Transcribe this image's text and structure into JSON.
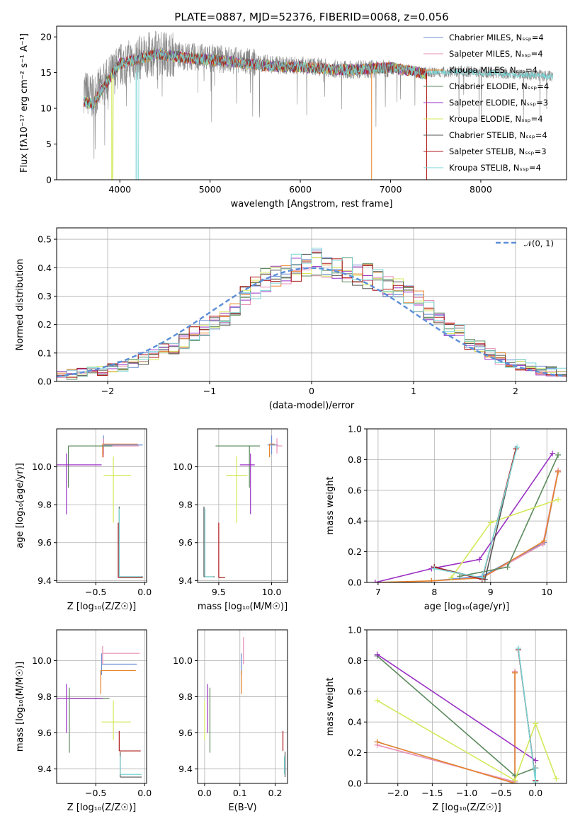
{
  "colors": [
    "#6c8ed4",
    "#e88fb5",
    "#e8852c",
    "#5c8a5e",
    "#9b30c4",
    "#d4e85a",
    "#555555",
    "#b01818",
    "#7ad6d6"
  ],
  "chart_data": [
    {
      "id": "spectrum",
      "type": "line",
      "title": "PLATE=0887, MJD=52376, FIBERID=0068, z=0.056",
      "xlabel": "wavelength [Angstrom, rest frame]",
      "ylabel": "Flux [fλ10⁻¹⁷ erg cm⁻² s⁻¹ A⁻¹]",
      "xlim": [
        3300,
        8950
      ],
      "ylim": [
        0,
        21.5
      ],
      "xticks": [
        4000,
        5000,
        6000,
        7000,
        8000
      ],
      "yticks": [
        0,
        5,
        10,
        15,
        20
      ],
      "grid": false,
      "legend_position": "top-right",
      "legend": [
        "Chabrier MILES, Nₛₛₚ=4",
        "Salpeter MILES, Nₛₛₚ=4",
        "Kroupa MILES, Nₛₛₚ=4",
        "Chabrier ELODIE, Nₛₛₚ=4",
        "Salpeter ELODIE, Nₛₛₚ=3",
        "Kroupa ELODIE, Nₛₛₚ=4",
        "Chabrier STELIB, Nₛₛₚ=4",
        "Salpeter STELIB, Nₛₛₚ=3",
        "Kroupa STELIB, Nₛₛₚ=4"
      ],
      "data_x": [
        3600,
        3700,
        3800,
        3900,
        4000,
        4200,
        4400,
        4600,
        4800,
        5000,
        5200,
        5400,
        5600,
        5800,
        6000,
        6200,
        6400,
        6600,
        6800,
        7000,
        7200,
        7400,
        7500,
        7800,
        8100,
        8400,
        8800
      ],
      "data_y": [
        12.5,
        11.5,
        13.0,
        14.5,
        16.0,
        17.0,
        17.8,
        17.5,
        17.2,
        17.0,
        16.8,
        16.5,
        16.3,
        16.0,
        16.0,
        15.8,
        15.5,
        15.4,
        15.5,
        15.5,
        15.3,
        15.0,
        15.0,
        15.2,
        15.0,
        14.8,
        14.5
      ],
      "model_x": [
        3600,
        3700,
        3800,
        3900,
        4000,
        4200,
        4400,
        4600,
        4800,
        5000,
        5200,
        5400,
        5600,
        5800,
        6000,
        6200,
        6400,
        6600,
        6800,
        7000,
        7200,
        7400
      ],
      "model_y": [
        11.0,
        10.5,
        12.5,
        14.5,
        16.3,
        16.8,
        17.6,
        17.3,
        17.0,
        16.8,
        16.6,
        16.2,
        16.0,
        15.8,
        15.8,
        15.6,
        15.4,
        15.4,
        15.6,
        15.7,
        15.3,
        14.8
      ],
      "model_x2": [
        7400,
        7700,
        8000,
        8300,
        8600,
        8800
      ],
      "model_y2": [
        15.0,
        15.1,
        15.0,
        14.7,
        14.6,
        14.4
      ]
    },
    {
      "id": "residuals",
      "type": "step",
      "xlabel": "(data-model)/error",
      "ylabel": "Normed distribution",
      "xlim": [
        -2.5,
        2.5
      ],
      "ylim": [
        0,
        0.54
      ],
      "xticks": [
        -2,
        -1,
        0,
        1,
        2
      ],
      "yticks": [
        0.0,
        0.1,
        0.2,
        0.3,
        0.4,
        0.5
      ],
      "grid": true,
      "legend_position": "top-right",
      "normal_label": "𝒩(0, 1)",
      "bin_edges": [
        -2.5,
        -2.4,
        -2.3,
        -2.2,
        -2.1,
        -2.0,
        -1.9,
        -1.8,
        -1.7,
        -1.6,
        -1.5,
        -1.4,
        -1.3,
        -1.2,
        -1.1,
        -1.0,
        -0.9,
        -0.8,
        -0.7,
        -0.6,
        -0.5,
        -0.4,
        -0.3,
        -0.2,
        -0.1,
        0.0,
        0.1,
        0.2,
        0.3,
        0.4,
        0.5,
        0.6,
        0.7,
        0.8,
        0.9,
        1.0,
        1.1,
        1.2,
        1.3,
        1.4,
        1.5,
        1.6,
        1.7,
        1.8,
        1.9,
        2.0,
        2.1,
        2.2,
        2.3,
        2.4,
        2.5
      ],
      "histogram_base": [
        0.02,
        0.025,
        0.03,
        0.035,
        0.04,
        0.05,
        0.055,
        0.065,
        0.08,
        0.1,
        0.11,
        0.12,
        0.14,
        0.17,
        0.19,
        0.21,
        0.23,
        0.27,
        0.3,
        0.33,
        0.36,
        0.38,
        0.39,
        0.4,
        0.41,
        0.42,
        0.41,
        0.4,
        0.39,
        0.38,
        0.37,
        0.36,
        0.34,
        0.32,
        0.3,
        0.28,
        0.25,
        0.22,
        0.19,
        0.17,
        0.14,
        0.12,
        0.1,
        0.08,
        0.07,
        0.06,
        0.05,
        0.04,
        0.035,
        0.03
      ]
    },
    {
      "id": "age-vs-z",
      "type": "scatter",
      "xlabel": "Z [log₁₀(Z/Z☉)]",
      "ylabel": "age  [log₁₀(age/yr)]",
      "xlim": [
        -0.9,
        0.02
      ],
      "ylim": [
        9.39,
        10.2
      ],
      "xticks": [
        -0.5,
        0.0
      ],
      "yticks": [
        9.4,
        9.6,
        9.8,
        10.0
      ],
      "grid": true,
      "points": [
        {
          "x": -0.42,
          "y": 10.115,
          "xerr": [
            0.0,
            0.4
          ],
          "yerr": [
            0.05,
            0.05
          ],
          "c": 0
        },
        {
          "x": -0.42,
          "y": 10.11,
          "xerr": [
            0.02,
            0.36
          ],
          "yerr": [
            0.06,
            0.04
          ],
          "c": 1
        },
        {
          "x": -0.43,
          "y": 10.12,
          "xerr": [
            0.0,
            0.36
          ],
          "yerr": [
            0.07,
            0.0
          ],
          "c": 2
        },
        {
          "x": -0.78,
          "y": 10.11,
          "xerr": [
            0.0,
            0.45
          ],
          "yerr": [
            0.22,
            0.0
          ],
          "c": 3
        },
        {
          "x": -0.8,
          "y": 10.01,
          "xerr": [
            0.1,
            0.36
          ],
          "yerr": [
            0.26,
            0.06
          ],
          "c": 4
        },
        {
          "x": -0.32,
          "y": 9.955,
          "xerr": [
            0.1,
            0.18
          ],
          "yerr": [
            0.25,
            0.1
          ],
          "c": 5
        },
        {
          "x": -0.26,
          "y": 9.42,
          "xerr": [
            0.0,
            0.24
          ],
          "yerr": [
            0.0,
            0.37
          ],
          "c": 6
        },
        {
          "x": -0.27,
          "y": 9.415,
          "xerr": [
            0.0,
            0.25
          ],
          "yerr": [
            0.0,
            0.29
          ],
          "c": 7
        },
        {
          "x": -0.26,
          "y": 9.42,
          "xerr": [
            0.0,
            0.23
          ],
          "yerr": [
            0.0,
            0.36
          ],
          "c": 8
        }
      ]
    },
    {
      "id": "age-vs-mass",
      "type": "scatter",
      "xlabel": "mass [log₁₀(M/M☉)]",
      "ylabel": "",
      "xlim": [
        9.3,
        10.15
      ],
      "ylim": [
        9.39,
        10.2
      ],
      "xticks": [
        9.5,
        10.0
      ],
      "yticks": [
        9.4,
        9.6,
        9.8,
        10.0
      ],
      "grid": true,
      "points": [
        {
          "x": 10.0,
          "y": 10.115,
          "xerr": [
            0.04,
            0.06
          ],
          "yerr": [
            0.05,
            0.05
          ],
          "c": 0
        },
        {
          "x": 10.05,
          "y": 10.11,
          "xerr": [
            0.0,
            0.05
          ],
          "yerr": [
            0.04,
            0.04
          ],
          "c": 1
        },
        {
          "x": 9.98,
          "y": 10.12,
          "xerr": [
            0.0,
            0.05
          ],
          "yerr": [
            0.07,
            0.0
          ],
          "c": 2
        },
        {
          "x": 9.79,
          "y": 10.11,
          "xerr": [
            0.32,
            0.1
          ],
          "yerr": [
            0.22,
            0.0
          ],
          "c": 3
        },
        {
          "x": 9.8,
          "y": 10.01,
          "xerr": [
            0.1,
            0.04
          ],
          "yerr": [
            0.26,
            0.06
          ],
          "c": 4
        },
        {
          "x": 9.67,
          "y": 9.955,
          "xerr": [
            0.1,
            0.1
          ],
          "yerr": [
            0.25,
            0.1
          ],
          "c": 5
        },
        {
          "x": 9.36,
          "y": 9.42,
          "xerr": [
            0.0,
            0.1
          ],
          "yerr": [
            0.0,
            0.37
          ],
          "c": 6
        },
        {
          "x": 9.5,
          "y": 9.415,
          "xerr": [
            0.0,
            0.06
          ],
          "yerr": [
            0.0,
            0.29
          ],
          "c": 7
        },
        {
          "x": 9.37,
          "y": 9.42,
          "xerr": [
            0.0,
            0.08
          ],
          "yerr": [
            0.0,
            0.36
          ],
          "c": 8
        }
      ]
    },
    {
      "id": "weight-vs-age",
      "type": "line",
      "xlabel": "age  [log₁₀(age/yr)]",
      "ylabel": "mass weight",
      "xlim": [
        6.8,
        10.35
      ],
      "ylim": [
        0,
        1.0
      ],
      "xticks": [
        7,
        8,
        9,
        10
      ],
      "yticks": [
        0.0,
        0.2,
        0.4,
        0.6,
        0.8,
        1.0
      ],
      "grid": true,
      "series": [
        {
          "c": 0,
          "x": [
            7.95,
            8.85,
            9.95,
            10.2
          ],
          "y": [
            0.01,
            0.04,
            0.26,
            0.72
          ]
        },
        {
          "c": 1,
          "x": [
            7.95,
            8.85,
            9.93,
            10.2
          ],
          "y": [
            0.01,
            0.03,
            0.25,
            0.73
          ]
        },
        {
          "c": 2,
          "x": [
            6.95,
            7.95,
            8.85,
            9.95,
            10.2
          ],
          "y": [
            0.0,
            0.01,
            0.03,
            0.27,
            0.72
          ]
        },
        {
          "c": 3,
          "x": [
            8.45,
            9.3,
            10.2
          ],
          "y": [
            0.04,
            0.1,
            0.83
          ]
        },
        {
          "c": 4,
          "x": [
            6.95,
            7.95,
            8.8,
            10.1
          ],
          "y": [
            0.0,
            0.09,
            0.15,
            0.84
          ]
        },
        {
          "c": 5,
          "x": [
            8.3,
            9.0,
            10.2
          ],
          "y": [
            0.03,
            0.39,
            0.54
          ]
        },
        {
          "c": 6,
          "x": [
            8.0,
            8.9,
            9.45
          ],
          "y": [
            0.1,
            0.02,
            0.87
          ]
        },
        {
          "c": 7,
          "x": [
            8.0,
            8.85,
            9.45
          ],
          "y": [
            0.1,
            0.02,
            0.87
          ]
        },
        {
          "c": 8,
          "x": [
            8.0,
            8.85,
            9.47
          ],
          "y": [
            0.09,
            0.03,
            0.88
          ]
        }
      ]
    },
    {
      "id": "mass-vs-z",
      "type": "scatter",
      "xlabel": "Z [log₁₀(Z/Z☉)]",
      "ylabel": "mass [log₁₀(M/M☉)]",
      "xlim": [
        -0.9,
        0.02
      ],
      "ylim": [
        9.32,
        10.17
      ],
      "xticks": [
        -0.5,
        0.0
      ],
      "yticks": [
        9.4,
        9.6,
        9.8,
        10.0
      ],
      "grid": true,
      "points": [
        {
          "x": -0.44,
          "y": 9.98,
          "xerr": [
            0.0,
            0.36
          ],
          "yerr": [
            0.06,
            0.06
          ],
          "c": 0
        },
        {
          "x": -0.43,
          "y": 10.04,
          "xerr": [
            0.0,
            0.38
          ],
          "yerr": [
            0.06,
            0.04
          ],
          "c": 1
        },
        {
          "x": -0.45,
          "y": 9.945,
          "xerr": [
            0.0,
            0.36
          ],
          "yerr": [
            0.13,
            0.0
          ],
          "c": 2
        },
        {
          "x": -0.77,
          "y": 9.79,
          "xerr": [
            0.0,
            0.41
          ],
          "yerr": [
            0.3,
            0.06
          ],
          "c": 3
        },
        {
          "x": -0.8,
          "y": 9.79,
          "xerr": [
            0.1,
            0.37
          ],
          "yerr": [
            0.19,
            0.08
          ],
          "c": 4
        },
        {
          "x": -0.32,
          "y": 9.66,
          "xerr": [
            0.12,
            0.18
          ],
          "yerr": [
            0.1,
            0.12
          ],
          "c": 5
        },
        {
          "x": -0.25,
          "y": 9.355,
          "xerr": [
            0.0,
            0.22
          ],
          "yerr": [
            0.0,
            0.14
          ],
          "c": 6
        },
        {
          "x": -0.26,
          "y": 9.5,
          "xerr": [
            0.0,
            0.22
          ],
          "yerr": [
            0.0,
            0.11
          ],
          "c": 7
        },
        {
          "x": -0.25,
          "y": 9.37,
          "xerr": [
            0.0,
            0.22
          ],
          "yerr": [
            0.0,
            0.1
          ],
          "c": 8
        }
      ]
    },
    {
      "id": "mass-vs-ebv",
      "type": "scatter",
      "xlabel": "E(B-V)",
      "ylabel": "",
      "xlim": [
        -0.02,
        0.235
      ],
      "ylim": [
        9.32,
        10.17
      ],
      "xticks": [
        0.0,
        0.1,
        0.2
      ],
      "yticks": [
        9.4,
        9.6,
        9.8,
        10.0
      ],
      "grid": true,
      "points": [
        {
          "x": 0.105,
          "y": 9.98,
          "xerr": [
            0.0,
            0.0
          ],
          "yerr": [
            0.06,
            0.06
          ],
          "c": 0
        },
        {
          "x": 0.11,
          "y": 10.04,
          "xerr": [
            0.0,
            0.0
          ],
          "yerr": [
            0.06,
            0.09
          ],
          "c": 1
        },
        {
          "x": 0.105,
          "y": 9.945,
          "xerr": [
            0.0,
            0.0
          ],
          "yerr": [
            0.13,
            0.0
          ],
          "c": 2
        },
        {
          "x": 0.015,
          "y": 9.79,
          "xerr": [
            0.0,
            0.0
          ],
          "yerr": [
            0.3,
            0.06
          ],
          "c": 3
        },
        {
          "x": 0.008,
          "y": 9.79,
          "xerr": [
            0.0,
            0.0
          ],
          "yerr": [
            0.19,
            0.08
          ],
          "c": 4
        },
        {
          "x": 0.0,
          "y": 9.66,
          "xerr": [
            0.0,
            0.0
          ],
          "yerr": [
            0.1,
            0.12
          ],
          "c": 5
        },
        {
          "x": 0.228,
          "y": 9.355,
          "xerr": [
            0.0,
            0.0
          ],
          "yerr": [
            0.0,
            0.14
          ],
          "c": 6
        },
        {
          "x": 0.222,
          "y": 9.5,
          "xerr": [
            0.0,
            0.0
          ],
          "yerr": [
            0.0,
            0.11
          ],
          "c": 7
        },
        {
          "x": 0.226,
          "y": 9.37,
          "xerr": [
            0.0,
            0.0
          ],
          "yerr": [
            0.0,
            0.1
          ],
          "c": 8
        }
      ]
    },
    {
      "id": "weight-vs-z",
      "type": "line",
      "xlabel": "Z [log₁₀(Z/Z☉)]",
      "ylabel": "mass weight",
      "xlim": [
        -2.45,
        0.45
      ],
      "ylim": [
        0,
        1.0
      ],
      "xticks": [
        -2.0,
        -1.5,
        -1.0,
        -0.5,
        0.0
      ],
      "yticks": [
        0.0,
        0.2,
        0.4,
        0.6,
        0.8,
        1.0
      ],
      "grid": true,
      "series": [
        {
          "c": 0,
          "x": [
            -2.3,
            -0.3,
            -0.3
          ],
          "y": [
            0.27,
            0.0,
            0.72
          ]
        },
        {
          "c": 1,
          "x": [
            -2.3,
            -0.3,
            -0.3
          ],
          "y": [
            0.25,
            0.01,
            0.73
          ]
        },
        {
          "c": 2,
          "x": [
            -2.3,
            -0.3,
            -0.3
          ],
          "y": [
            0.27,
            0.0,
            0.72
          ]
        },
        {
          "c": 3,
          "x": [
            -2.3,
            -0.3,
            0.0
          ],
          "y": [
            0.83,
            0.05,
            0.1
          ]
        },
        {
          "c": 4,
          "x": [
            -2.3,
            0.0
          ],
          "y": [
            0.84,
            0.15
          ]
        },
        {
          "c": 5,
          "x": [
            -2.3,
            -0.3,
            0.0,
            0.3
          ],
          "y": [
            0.54,
            0.02,
            0.39,
            0.03
          ]
        },
        {
          "c": 6,
          "x": [
            -0.25,
            0.0,
            0.0
          ],
          "y": [
            0.87,
            0.02,
            0.1
          ]
        },
        {
          "c": 7,
          "x": [
            -0.25,
            0.0,
            0.0
          ],
          "y": [
            0.87,
            0.02,
            0.1
          ]
        },
        {
          "c": 8,
          "x": [
            -0.25,
            0.0,
            0.0
          ],
          "y": [
            0.88,
            0.01,
            0.1
          ]
        }
      ]
    }
  ]
}
